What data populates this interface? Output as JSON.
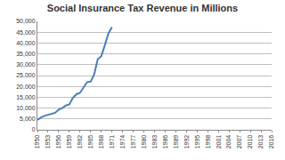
{
  "chart_data": {
    "type": "line",
    "title": "Social Insurance Tax Revenue in Millions",
    "x": [
      1950,
      1951,
      1952,
      1953,
      1954,
      1955,
      1956,
      1957,
      1958,
      1959,
      1960,
      1961,
      1962,
      1963,
      1964,
      1965,
      1966,
      1967,
      1968,
      1969,
      1970,
      1971
    ],
    "values": [
      4500,
      5700,
      6400,
      6800,
      7200,
      7800,
      9300,
      10000,
      11200,
      11700,
      14700,
      16400,
      17000,
      19800,
      22000,
      22200,
      25500,
      32600,
      33900,
      39000,
      44400,
      47300
    ],
    "color": "#4a7ebb",
    "xlim": [
      1950,
      2016
    ],
    "xticks": [
      1950,
      1953,
      1956,
      1959,
      1962,
      1965,
      1968,
      1971,
      1974,
      1977,
      1980,
      1983,
      1986,
      1989,
      1992,
      1995,
      1998,
      2001,
      2004,
      2007,
      2010,
      2013,
      2016
    ],
    "ylim": [
      0,
      50000
    ],
    "yticks": [
      0,
      {
        "value": 5000,
        "label": "5,000"
      },
      {
        "value": 10000,
        "label": "10,000"
      },
      {
        "value": 15000,
        "label": "15,000"
      },
      {
        "value": 20000,
        "label": "20,000"
      },
      {
        "value": 25000,
        "label": "25,000"
      },
      {
        "value": 30000,
        "label": "30,000"
      },
      {
        "value": 35000,
        "label": "35,000"
      },
      {
        "value": 40000,
        "label": "40,000"
      },
      {
        "value": 45000,
        "label": "45,000"
      },
      {
        "value": 50000,
        "label": "50,000"
      }
    ],
    "grid": true
  }
}
